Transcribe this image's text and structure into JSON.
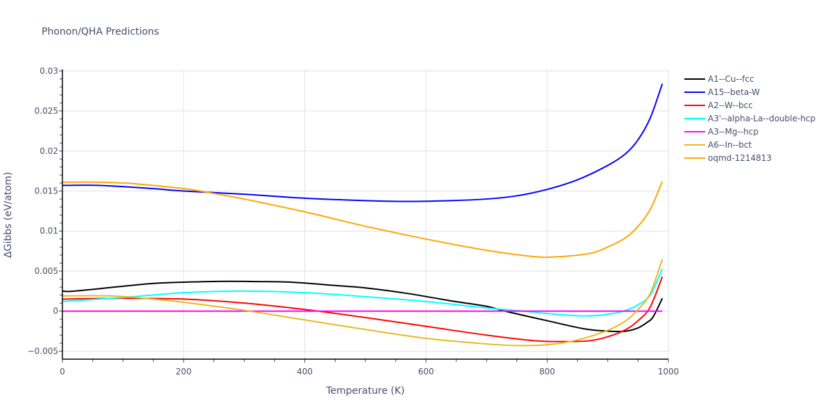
{
  "chart_data": {
    "type": "line",
    "title": "Phonon/QHA Predictions",
    "xlabel": "Temperature (K)",
    "ylabel": "ΔGibbs (eV/atom)",
    "xlim": [
      0,
      1000
    ],
    "ylim": [
      -0.006,
      0.0302
    ],
    "xticks": [
      0,
      200,
      400,
      600,
      800,
      1000
    ],
    "xtick_labels": [
      "0",
      "200",
      "400",
      "600",
      "800",
      "1000"
    ],
    "yticks": [
      -0.005,
      0,
      0.005,
      0.01,
      0.015,
      0.02,
      0.025,
      0.03
    ],
    "ytick_labels": [
      "−0.005",
      "0",
      "0.005",
      "0.01",
      "0.015",
      "0.02",
      "0.025",
      "0.03"
    ],
    "grid": true,
    "legend_position": "right",
    "series": [
      {
        "name": "A1--Cu--fcc",
        "color": "#000000",
        "x": [
          0,
          20,
          100,
          160,
          250,
          310,
          380,
          450,
          500,
          570,
          640,
          700,
          730,
          800,
          860,
          900,
          930,
          950,
          965,
          975,
          990
        ],
        "y": [
          0.0025,
          0.0025,
          0.0031,
          0.0035,
          0.0037,
          0.0037,
          0.0036,
          0.0032,
          0.0029,
          0.0022,
          0.0013,
          0.0006,
          0.0,
          -0.0012,
          -0.0022,
          -0.0025,
          -0.0025,
          -0.0021,
          -0.0014,
          -0.0007,
          0.0016
        ]
      },
      {
        "name": "A15--beta-W",
        "color": "#0000ff",
        "x": [
          0,
          60,
          150,
          200,
          300,
          400,
          500,
          570,
          640,
          700,
          750,
          800,
          850,
          900,
          930,
          950,
          970,
          990
        ],
        "y": [
          0.0157,
          0.0157,
          0.0153,
          0.015,
          0.0146,
          0.0141,
          0.0138,
          0.0137,
          0.0138,
          0.014,
          0.0144,
          0.0152,
          0.0164,
          0.0182,
          0.0197,
          0.0214,
          0.0241,
          0.0284
        ]
      },
      {
        "name": "A2--W--bcc",
        "color": "#ff0000",
        "x": [
          0,
          100,
          200,
          300,
          400,
          500,
          600,
          700,
          780,
          830,
          870,
          900,
          930,
          950,
          970,
          990
        ],
        "y": [
          0.0015,
          0.0016,
          0.0015,
          0.001,
          0.0002,
          -0.0008,
          -0.0019,
          -0.003,
          -0.0037,
          -0.0038,
          -0.0037,
          -0.0032,
          -0.0023,
          -0.0012,
          0.0005,
          0.0043
        ]
      },
      {
        "name": "A3'--alpha-La--double-hcp",
        "color": "#00ffff",
        "x": [
          0,
          100,
          200,
          300,
          400,
          500,
          600,
          700,
          760,
          800,
          860,
          900,
          930,
          950,
          970,
          990
        ],
        "y": [
          0.0012,
          0.0017,
          0.0023,
          0.0025,
          0.0023,
          0.0018,
          0.0012,
          0.0004,
          0.0,
          -0.0003,
          -0.0006,
          -0.0004,
          0.0001,
          0.0008,
          0.002,
          0.0053
        ]
      },
      {
        "name": "A3--Mg--hcp",
        "color": "#ff00ff",
        "x": [
          0,
          990
        ],
        "y": [
          0,
          0
        ]
      },
      {
        "name": "A6--In--bct",
        "color": "#e6b91e",
        "x": [
          0,
          80,
          150,
          200,
          300,
          400,
          500,
          600,
          700,
          750,
          800,
          850,
          900,
          930,
          950,
          970,
          990
        ],
        "y": [
          0.0019,
          0.0019,
          0.0015,
          0.0011,
          0.0001,
          -0.0011,
          -0.0023,
          -0.0034,
          -0.0041,
          -0.0043,
          -0.0042,
          -0.0036,
          -0.0024,
          -0.0012,
          0.0002,
          0.0022,
          0.0065
        ]
      },
      {
        "name": "oqmd-1214813",
        "color": "#ffa500",
        "x": [
          0,
          60,
          120,
          200,
          250,
          300,
          400,
          500,
          600,
          700,
          780,
          820,
          870,
          900,
          930,
          950,
          970,
          990
        ],
        "y": [
          0.0161,
          0.0161,
          0.0159,
          0.0153,
          0.0147,
          0.014,
          0.0124,
          0.0106,
          0.009,
          0.0076,
          0.0068,
          0.0068,
          0.0072,
          0.008,
          0.0092,
          0.0106,
          0.0127,
          0.0162
        ]
      }
    ]
  }
}
